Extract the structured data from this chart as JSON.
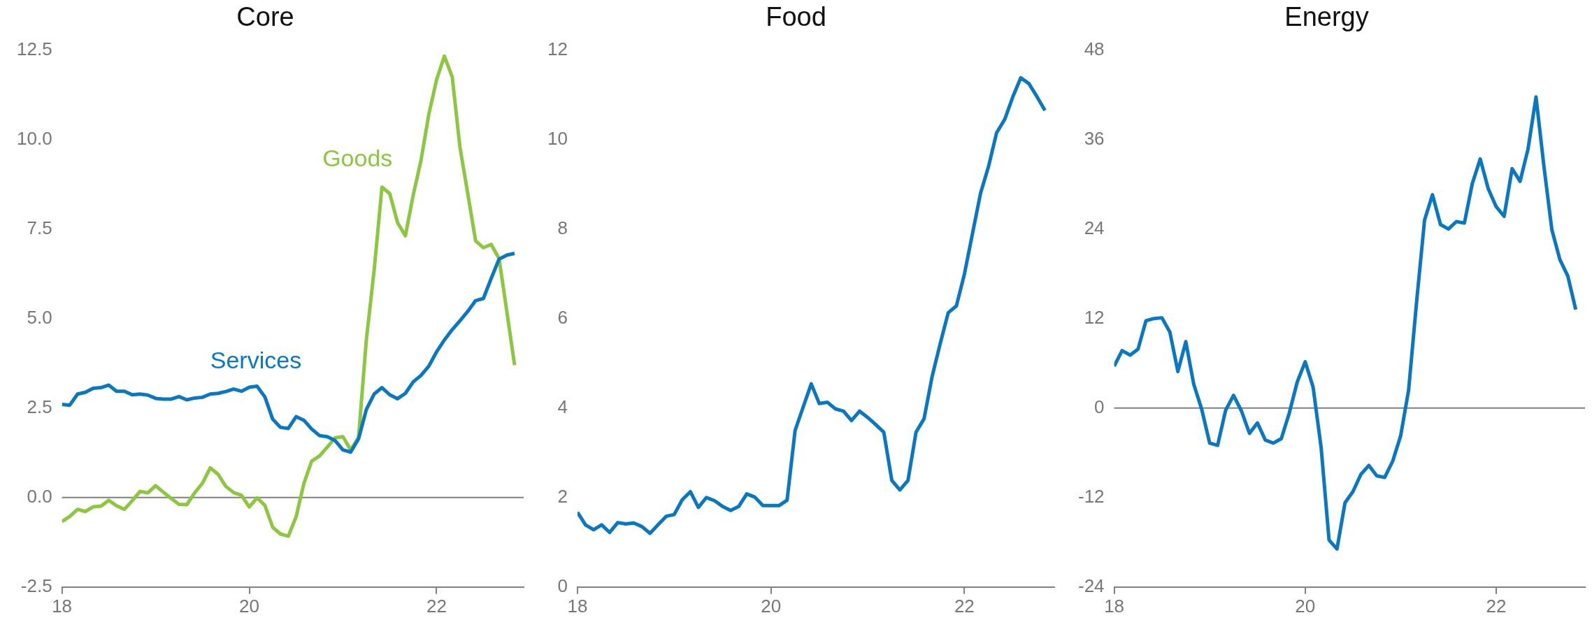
{
  "chart_data": [
    {
      "type": "line",
      "title": "Core",
      "x": [
        18,
        18.083,
        18.167,
        18.25,
        18.333,
        18.417,
        18.5,
        18.583,
        18.667,
        18.75,
        18.833,
        18.917,
        19,
        19.083,
        19.167,
        19.25,
        19.333,
        19.417,
        19.5,
        19.583,
        19.667,
        19.75,
        19.833,
        19.917,
        20,
        20.083,
        20.167,
        20.25,
        20.333,
        20.417,
        20.5,
        20.583,
        20.667,
        20.75,
        20.833,
        20.917,
        21,
        21.083,
        21.167,
        21.25,
        21.333,
        21.417,
        21.5,
        21.583,
        21.667,
        21.75,
        21.833,
        21.917,
        22,
        22.083,
        22.167,
        22.25,
        22.333,
        22.417,
        22.5,
        22.583,
        22.667,
        22.75,
        22.833
      ],
      "series": [
        {
          "name": "Services",
          "color": "#0a77c2",
          "values": [
            2.6,
            2.58,
            2.89,
            2.94,
            3.05,
            3.07,
            3.14,
            2.97,
            2.97,
            2.87,
            2.89,
            2.86,
            2.77,
            2.75,
            2.75,
            2.82,
            2.73,
            2.78,
            2.8,
            2.89,
            2.91,
            2.96,
            3.03,
            2.97,
            3.08,
            3.11,
            2.81,
            2.19,
            1.96,
            1.93,
            2.26,
            2.16,
            1.91,
            1.73,
            1.7,
            1.59,
            1.33,
            1.27,
            1.64,
            2.46,
            2.89,
            3.07,
            2.87,
            2.76,
            2.91,
            3.23,
            3.41,
            3.67,
            4.07,
            4.4,
            4.69,
            4.94,
            5.2,
            5.5,
            5.56,
            6.12,
            6.66,
            6.77,
            6.82
          ]
        },
        {
          "name": "Goods",
          "color": "#8dc63f",
          "values": [
            -0.67,
            -0.53,
            -0.33,
            -0.39,
            -0.26,
            -0.24,
            -0.08,
            -0.23,
            -0.33,
            -0.09,
            0.17,
            0.13,
            0.33,
            0.15,
            -0.03,
            -0.19,
            -0.2,
            0.13,
            0.4,
            0.83,
            0.65,
            0.31,
            0.14,
            0.06,
            -0.26,
            -0.01,
            -0.22,
            -0.83,
            -1.02,
            -1.08,
            -0.54,
            0.39,
            1.02,
            1.16,
            1.41,
            1.67,
            1.7,
            1.33,
            1.68,
            4.4,
            6.34,
            8.67,
            8.49,
            7.68,
            7.31,
            8.44,
            9.41,
            10.7,
            11.67,
            12.33,
            11.75,
            9.78,
            8.49,
            7.17,
            6.98,
            7.07,
            6.68,
            5.2,
            3.7
          ]
        }
      ],
      "xlim": [
        18,
        22.93
      ],
      "xticks": [
        18,
        20,
        22
      ],
      "ylim": [
        -2.5,
        12.5
      ],
      "yticks": [
        -2.5,
        {
          "value": 0,
          "label": "0.0"
        },
        2.5,
        {
          "value": 5,
          "label": "5.0"
        },
        7.5,
        {
          "value": 10,
          "label": "10.0"
        },
        12.5
      ],
      "ref_lines": [
        {
          "axis": "y",
          "value": 0,
          "color": "#808080"
        }
      ]
    },
    {
      "type": "line",
      "title": "Food",
      "x": [
        18,
        18.083,
        18.167,
        18.25,
        18.333,
        18.417,
        18.5,
        18.583,
        18.667,
        18.75,
        18.833,
        18.917,
        19,
        19.083,
        19.167,
        19.25,
        19.333,
        19.417,
        19.5,
        19.583,
        19.667,
        19.75,
        19.833,
        19.917,
        20,
        20.083,
        20.167,
        20.25,
        20.333,
        20.417,
        20.5,
        20.583,
        20.667,
        20.75,
        20.833,
        20.917,
        21,
        21.083,
        21.167,
        21.25,
        21.333,
        21.417,
        21.5,
        21.583,
        21.667,
        21.75,
        21.833,
        21.917,
        22,
        22.083,
        22.167,
        22.25,
        22.333,
        22.417,
        22.5,
        22.583,
        22.667,
        22.75,
        22.833
      ],
      "series": [
        {
          "color": "#0a77c2",
          "values": [
            1.67,
            1.39,
            1.28,
            1.39,
            1.22,
            1.44,
            1.41,
            1.43,
            1.35,
            1.2,
            1.39,
            1.58,
            1.62,
            1.95,
            2.13,
            1.78,
            2.0,
            1.93,
            1.8,
            1.71,
            1.8,
            2.08,
            2.01,
            1.82,
            1.82,
            1.82,
            1.94,
            3.5,
            4.02,
            4.54,
            4.1,
            4.13,
            3.98,
            3.93,
            3.72,
            3.93,
            3.79,
            3.63,
            3.46,
            2.38,
            2.17,
            2.38,
            3.46,
            3.76,
            4.71,
            5.44,
            6.13,
            6.28,
            6.99,
            7.89,
            8.8,
            9.4,
            10.15,
            10.45,
            10.95,
            11.38,
            11.25,
            10.96,
            10.65
          ]
        }
      ],
      "xlim": [
        18,
        22.93
      ],
      "xticks": [
        18,
        20,
        22
      ],
      "ylim": [
        0,
        12
      ],
      "yticks": [
        0,
        2,
        4,
        6,
        8,
        10,
        12
      ]
    },
    {
      "type": "line",
      "title": "Energy",
      "x": [
        18,
        18.083,
        18.167,
        18.25,
        18.333,
        18.417,
        18.5,
        18.583,
        18.667,
        18.75,
        18.833,
        18.917,
        19,
        19.083,
        19.167,
        19.25,
        19.333,
        19.417,
        19.5,
        19.583,
        19.667,
        19.75,
        19.833,
        19.917,
        20,
        20.083,
        20.167,
        20.25,
        20.333,
        20.417,
        20.5,
        20.583,
        20.667,
        20.75,
        20.833,
        20.917,
        21,
        21.083,
        21.167,
        21.25,
        21.333,
        21.417,
        21.5,
        21.583,
        21.667,
        21.75,
        21.833,
        21.917,
        22,
        22.083,
        22.167,
        22.25,
        22.333,
        22.417,
        22.5,
        22.583,
        22.667,
        22.75,
        22.833
      ],
      "series": [
        {
          "color": "#0a77c2",
          "values": [
            5.6,
            7.7,
            7.1,
            7.9,
            11.7,
            12.0,
            12.1,
            10.2,
            4.9,
            8.9,
            3.2,
            -0.2,
            -4.7,
            -5.0,
            -0.3,
            1.7,
            -0.4,
            -3.4,
            -2.0,
            -4.3,
            -4.7,
            -4.1,
            -0.7,
            3.5,
            6.2,
            2.8,
            -5.3,
            -17.7,
            -18.9,
            -12.7,
            -11.2,
            -8.9,
            -7.7,
            -9.1,
            -9.3,
            -7.1,
            -3.7,
            2.4,
            14.3,
            25.2,
            28.6,
            24.6,
            24.0,
            25.0,
            24.8,
            30.1,
            33.4,
            29.4,
            27.0,
            25.7,
            32.1,
            30.4,
            34.7,
            41.7,
            32.4,
            23.9,
            19.9,
            17.7,
            13.2
          ]
        }
      ],
      "xlim": [
        18,
        22.93
      ],
      "xticks": [
        18,
        20,
        22
      ],
      "ylim": [
        -24,
        48
      ],
      "yticks": [
        -24,
        -12,
        0,
        12,
        24,
        36,
        48
      ],
      "ref_lines": [
        {
          "axis": "y",
          "value": 0,
          "color": "#808080"
        }
      ]
    }
  ]
}
